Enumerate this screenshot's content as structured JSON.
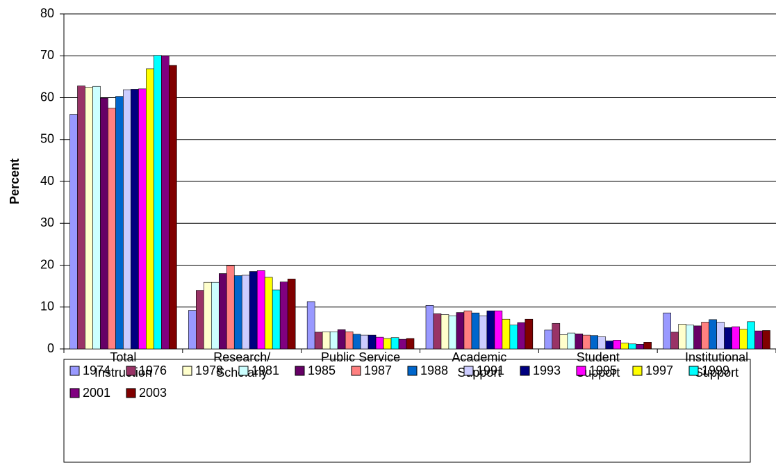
{
  "chart_data": {
    "type": "bar",
    "y_label": "Percent",
    "categories": [
      [
        "Total",
        "Instruction"
      ],
      [
        "Research/",
        "Scholarly"
      ],
      [
        "Public Service"
      ],
      [
        "Academic",
        "Support"
      ],
      [
        "Student",
        "Support"
      ],
      [
        "Institutional",
        "Support"
      ]
    ],
    "series": [
      {
        "name": "1974",
        "color": "#9999ff",
        "values": [
          56,
          9.2,
          11.3,
          10.4,
          4.5,
          8.6
        ]
      },
      {
        "name": "1976",
        "color": "#993366",
        "values": [
          62.8,
          14,
          4,
          8.4,
          6.1,
          4
        ]
      },
      {
        "name": "1978",
        "color": "#ffffcc",
        "values": [
          62.5,
          15.9,
          4.1,
          8.2,
          3.4,
          5.9
        ]
      },
      {
        "name": "1981",
        "color": "#ccffff",
        "values": [
          62.7,
          15.9,
          4.1,
          7.9,
          3.8,
          5.7
        ]
      },
      {
        "name": "1985",
        "color": "#660066",
        "values": [
          59.9,
          18,
          4.6,
          8.7,
          3.6,
          5.5
        ]
      },
      {
        "name": "1987",
        "color": "#ff8080",
        "values": [
          57.5,
          19.9,
          4.1,
          9.1,
          3.3,
          6.4
        ]
      },
      {
        "name": "1988",
        "color": "#0066cc",
        "values": [
          60.3,
          17.5,
          3.5,
          8.6,
          3.2,
          7
        ]
      },
      {
        "name": "1991",
        "color": "#ccccff",
        "values": [
          61.9,
          17.6,
          3.3,
          7.9,
          2.9,
          6.4
        ]
      },
      {
        "name": "1993",
        "color": "#000080",
        "values": [
          62,
          18.5,
          3.3,
          9.1,
          1.9,
          5.1
        ]
      },
      {
        "name": "1995",
        "color": "#ff00ff",
        "values": [
          62.1,
          18.7,
          2.8,
          9.1,
          2.1,
          5.3
        ]
      },
      {
        "name": "1997",
        "color": "#ffff00",
        "values": [
          66.9,
          17.1,
          2.5,
          7.1,
          1.4,
          4.7
        ]
      },
      {
        "name": "1999",
        "color": "#00ffff",
        "values": [
          70.1,
          14.1,
          2.7,
          5.7,
          1.2,
          6.5
        ]
      },
      {
        "name": "2001",
        "color": "#800080",
        "values": [
          70,
          16,
          2.3,
          6.3,
          1.1,
          4.3
        ]
      },
      {
        "name": "2003",
        "color": "#800000",
        "values": [
          67.7,
          16.7,
          2.5,
          7.1,
          1.6,
          4.4
        ]
      }
    ],
    "ylim": [
      0,
      80
    ],
    "yticks": [
      0,
      10,
      20,
      30,
      40,
      50,
      60,
      70,
      80
    ],
    "grid": true
  }
}
